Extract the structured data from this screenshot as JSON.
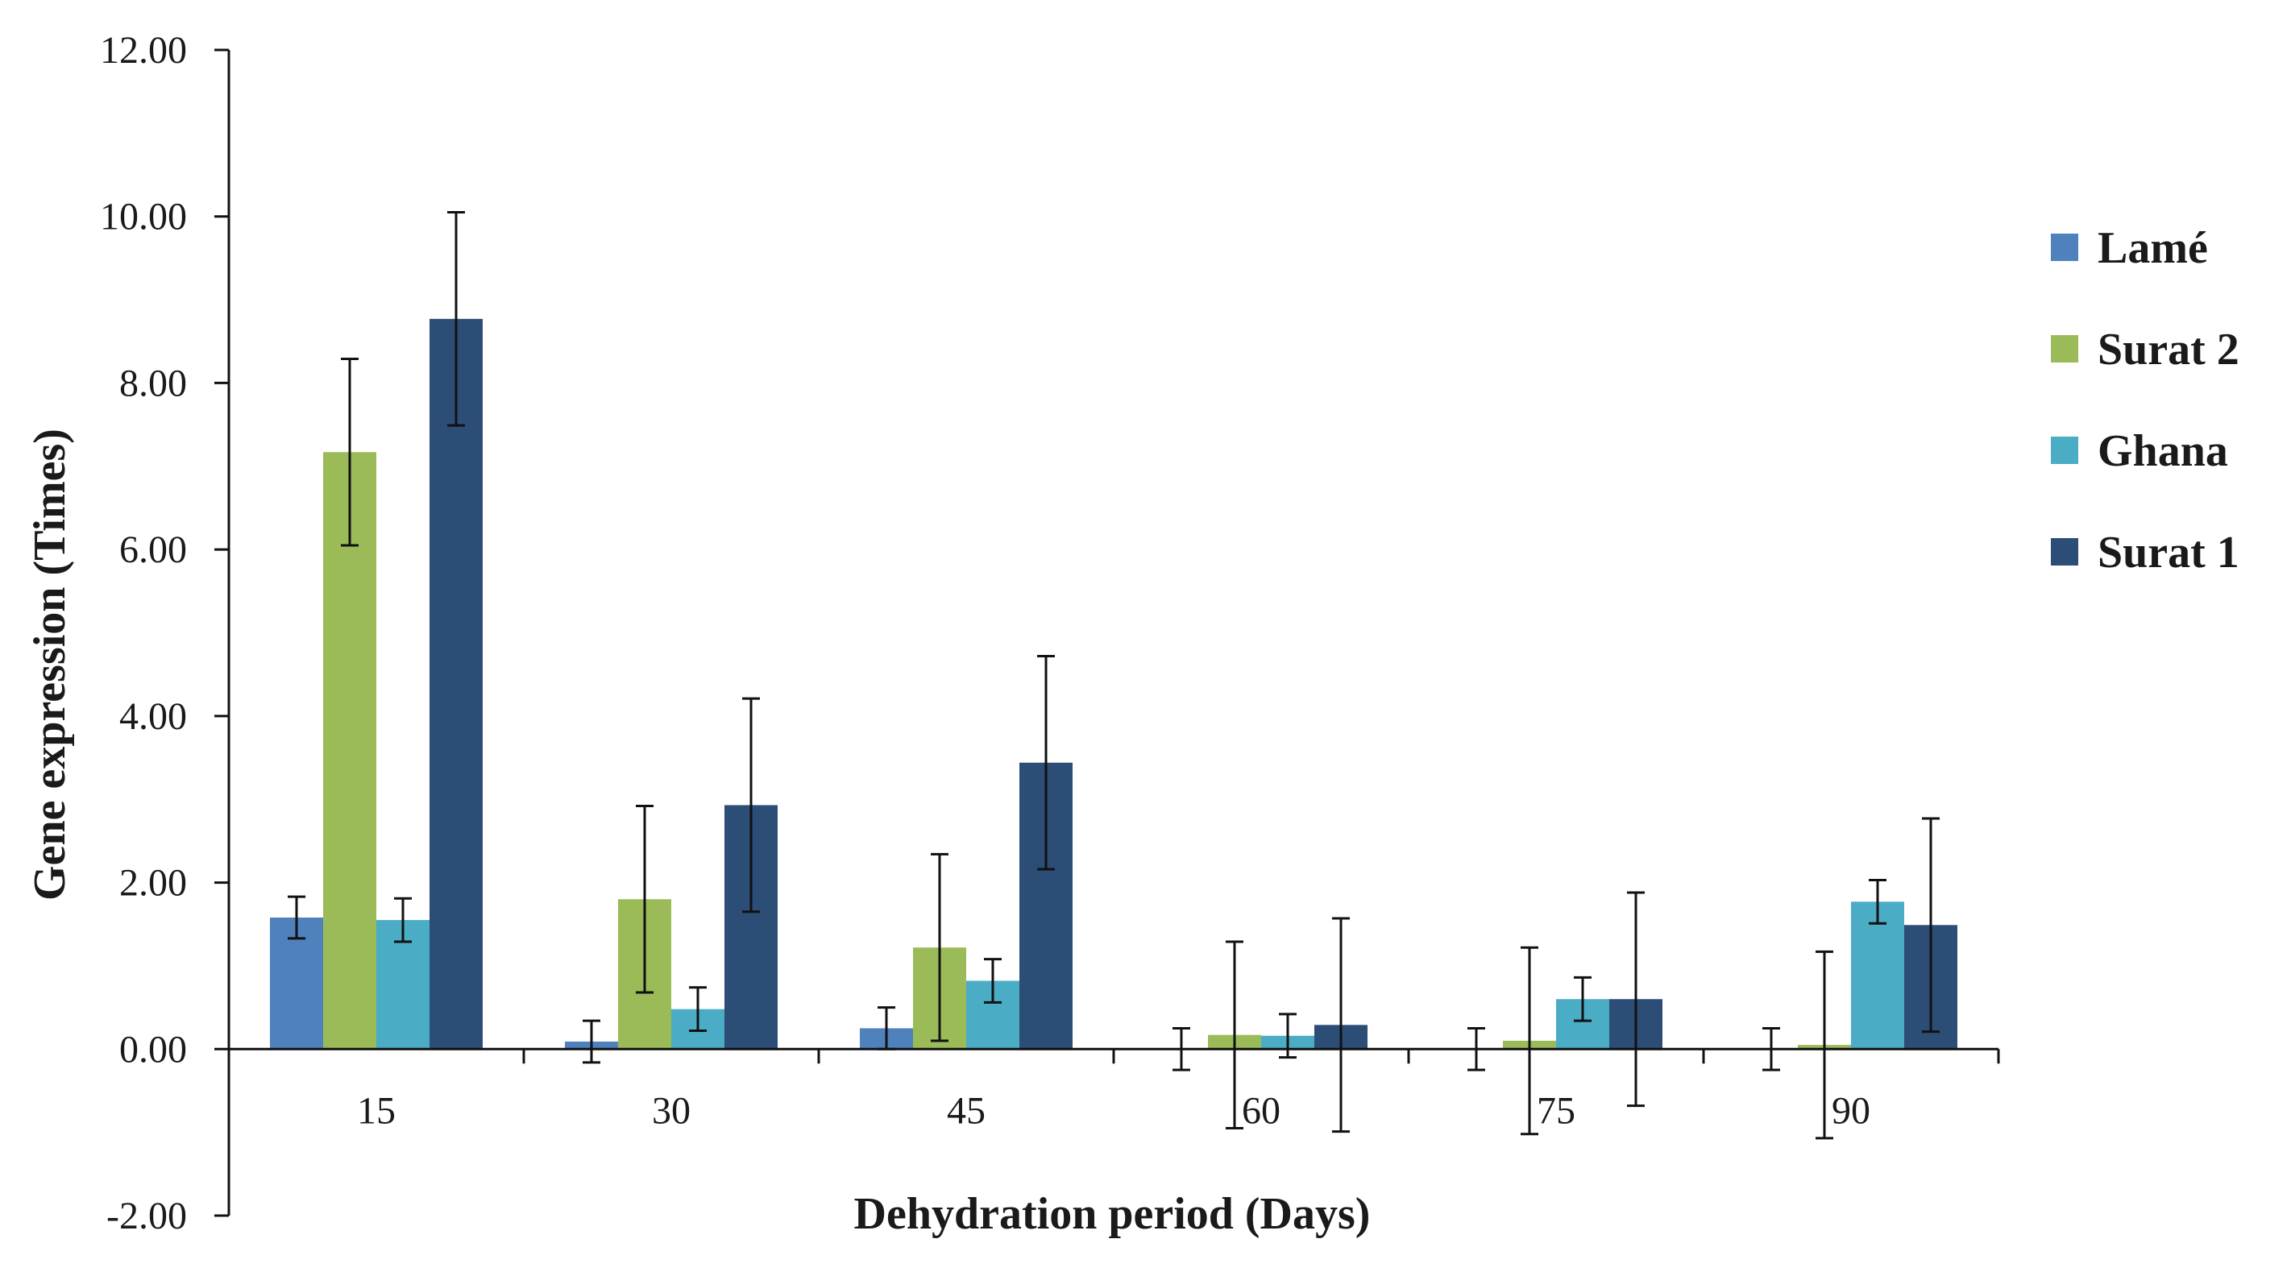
{
  "chart_data": {
    "type": "bar",
    "title": "",
    "xlabel": "Dehydration period (Days)",
    "ylabel": "Gene expression (Times)",
    "ylim": [
      -2,
      12
    ],
    "yticks": [
      -2,
      0,
      2,
      4,
      6,
      8,
      10,
      12
    ],
    "ytick_labels": [
      "-2.00",
      "0.00",
      "2.00",
      "4.00",
      "6.00",
      "8.00",
      "10.00",
      "12.00"
    ],
    "categories": [
      "15",
      "30",
      "45",
      "60",
      "75",
      "90"
    ],
    "legend_position": "right",
    "series": [
      {
        "name": "Lamé",
        "color": "#4f81bd",
        "values": [
          1.58,
          0.09,
          0.25,
          0.0,
          0.0,
          0.0
        ],
        "errors": [
          0.25,
          0.25,
          0.25,
          0.25,
          0.25,
          0.25
        ]
      },
      {
        "name": "Surat 2",
        "color": "#9bbb59",
        "values": [
          7.17,
          1.8,
          1.22,
          0.17,
          0.1,
          0.05
        ],
        "errors": [
          1.12,
          1.12,
          1.12,
          1.12,
          1.12,
          1.12
        ]
      },
      {
        "name": "Ghana",
        "color": "#4bacc6",
        "values": [
          1.55,
          0.48,
          0.82,
          0.16,
          0.6,
          1.77
        ],
        "errors": [
          0.26,
          0.26,
          0.26,
          0.26,
          0.26,
          0.26
        ]
      },
      {
        "name": "Surat 1",
        "color": "#2c4d75",
        "values": [
          8.77,
          2.93,
          3.44,
          0.29,
          0.6,
          1.49
        ],
        "errors": [
          1.28,
          1.28,
          1.28,
          1.28,
          1.28,
          1.28
        ]
      }
    ]
  }
}
